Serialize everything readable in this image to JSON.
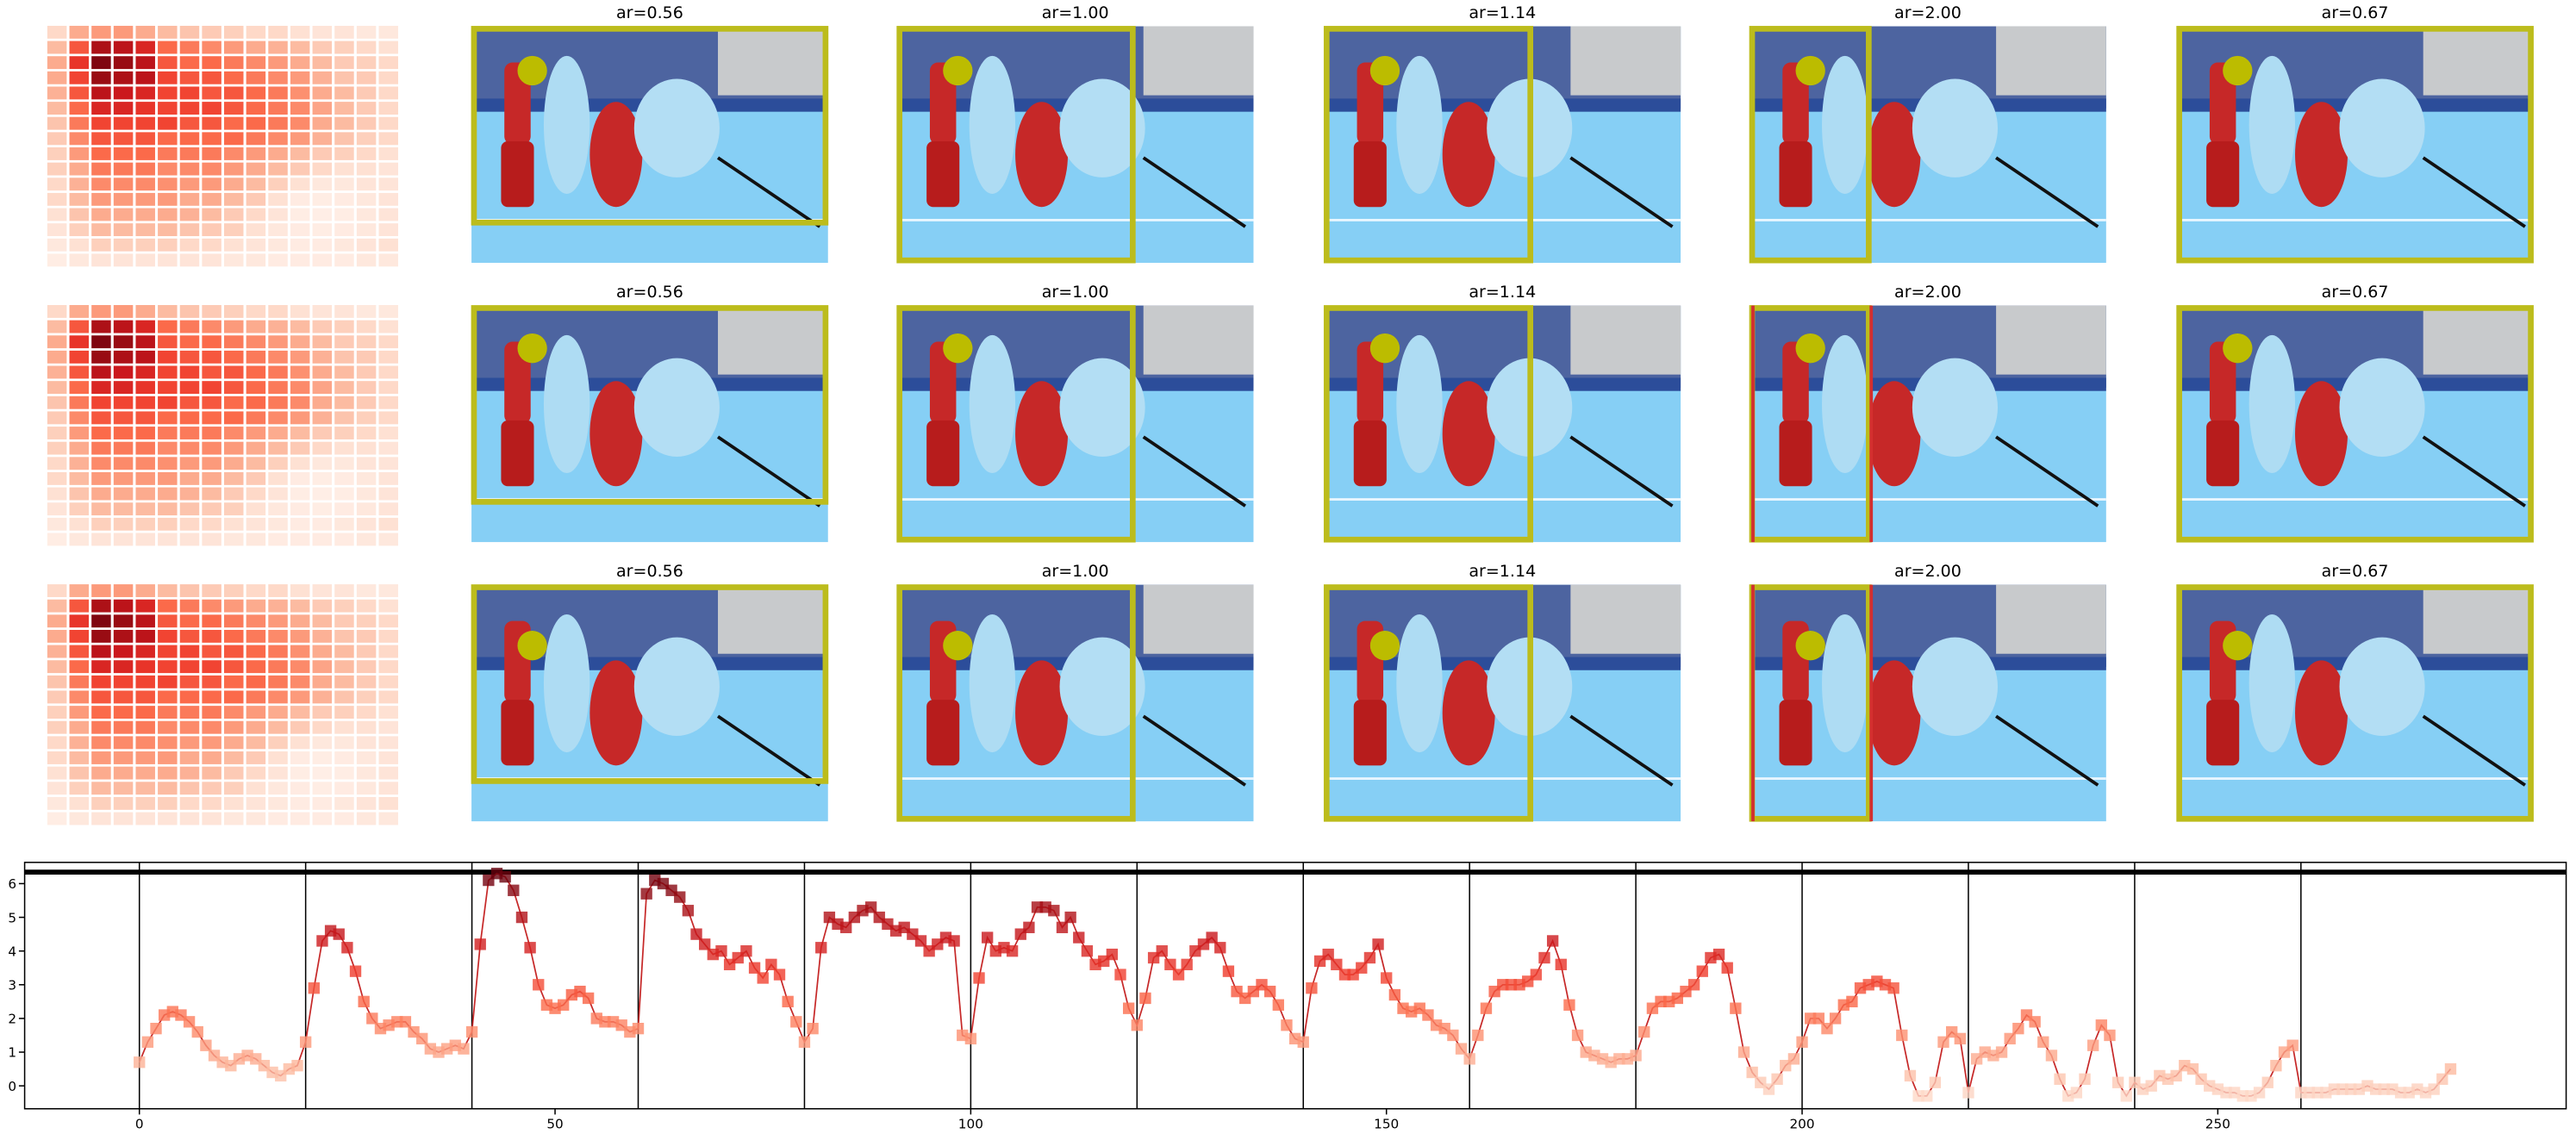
{
  "chart_data": [
    {
      "type": "heatmap",
      "cmap": "Reds",
      "values": [
        [
          0.15,
          0.3,
          0.35,
          0.35,
          0.3,
          0.25,
          0.22,
          0.2,
          0.18,
          0.15,
          0.15,
          0.12,
          0.1,
          0.1,
          0.08,
          0.08
        ],
        [
          0.25,
          0.55,
          0.85,
          0.8,
          0.7,
          0.5,
          0.45,
          0.4,
          0.35,
          0.3,
          0.28,
          0.25,
          0.2,
          0.18,
          0.15,
          0.12
        ],
        [
          0.3,
          0.65,
          0.95,
          0.9,
          0.8,
          0.55,
          0.5,
          0.5,
          0.45,
          0.4,
          0.35,
          0.3,
          0.25,
          0.2,
          0.18,
          0.15
        ],
        [
          0.3,
          0.6,
          0.9,
          0.85,
          0.8,
          0.6,
          0.55,
          0.55,
          0.5,
          0.45,
          0.4,
          0.35,
          0.28,
          0.22,
          0.2,
          0.15
        ],
        [
          0.28,
          0.55,
          0.8,
          0.75,
          0.7,
          0.6,
          0.6,
          0.55,
          0.55,
          0.5,
          0.45,
          0.38,
          0.3,
          0.25,
          0.2,
          0.15
        ],
        [
          0.25,
          0.5,
          0.7,
          0.7,
          0.65,
          0.6,
          0.6,
          0.6,
          0.55,
          0.5,
          0.45,
          0.4,
          0.32,
          0.25,
          0.2,
          0.15
        ],
        [
          0.22,
          0.45,
          0.6,
          0.6,
          0.6,
          0.6,
          0.55,
          0.55,
          0.5,
          0.5,
          0.45,
          0.4,
          0.3,
          0.25,
          0.2,
          0.15
        ],
        [
          0.2,
          0.4,
          0.55,
          0.55,
          0.55,
          0.5,
          0.5,
          0.5,
          0.5,
          0.45,
          0.4,
          0.35,
          0.28,
          0.22,
          0.18,
          0.15
        ],
        [
          0.18,
          0.35,
          0.5,
          0.5,
          0.5,
          0.45,
          0.45,
          0.45,
          0.4,
          0.35,
          0.3,
          0.25,
          0.2,
          0.18,
          0.15,
          0.12
        ],
        [
          0.18,
          0.3,
          0.45,
          0.45,
          0.45,
          0.4,
          0.4,
          0.4,
          0.35,
          0.3,
          0.25,
          0.2,
          0.15,
          0.12,
          0.12,
          0.1
        ],
        [
          0.15,
          0.28,
          0.4,
          0.4,
          0.4,
          0.38,
          0.35,
          0.35,
          0.3,
          0.25,
          0.18,
          0.12,
          0.08,
          0.08,
          0.1,
          0.1
        ],
        [
          0.15,
          0.25,
          0.35,
          0.35,
          0.35,
          0.35,
          0.3,
          0.3,
          0.25,
          0.2,
          0.12,
          0.06,
          0.05,
          0.06,
          0.08,
          0.1
        ],
        [
          0.12,
          0.22,
          0.3,
          0.3,
          0.3,
          0.3,
          0.28,
          0.25,
          0.2,
          0.15,
          0.1,
          0.05,
          0.04,
          0.05,
          0.08,
          0.1
        ],
        [
          0.1,
          0.18,
          0.25,
          0.25,
          0.25,
          0.25,
          0.22,
          0.2,
          0.18,
          0.12,
          0.08,
          0.06,
          0.05,
          0.06,
          0.08,
          0.1
        ],
        [
          0.08,
          0.12,
          0.18,
          0.18,
          0.18,
          0.18,
          0.15,
          0.15,
          0.12,
          0.1,
          0.08,
          0.06,
          0.06,
          0.08,
          0.1,
          0.12
        ],
        [
          0.05,
          0.08,
          0.1,
          0.1,
          0.1,
          0.1,
          0.1,
          0.1,
          0.08,
          0.08,
          0.06,
          0.06,
          0.06,
          0.06,
          0.08,
          0.08
        ]
      ]
    },
    {
      "type": "image-grid",
      "titles": [
        [
          "ar=0.56",
          "ar=1.00",
          "ar=1.14",
          "ar=2.00",
          "ar=0.67"
        ],
        [
          "ar=0.56",
          "ar=1.00",
          "ar=1.14",
          "ar=2.00",
          "ar=0.67"
        ],
        [
          "ar=0.56",
          "ar=1.00",
          "ar=1.14",
          "ar=2.00",
          "ar=0.67"
        ]
      ]
    },
    {
      "type": "line",
      "cmap": "Reds",
      "xlim": [
        -13.8,
        291.9
      ],
      "ylim": [
        -0.68,
        6.63
      ],
      "xticks": [
        0,
        50,
        100,
        150,
        200,
        250
      ],
      "yticks": [
        0,
        1,
        2,
        3,
        4,
        5,
        6
      ],
      "vlines": [
        0,
        20,
        40,
        60,
        80,
        100,
        120,
        140,
        160,
        180,
        200,
        220,
        240,
        260
      ],
      "hline": 6.34,
      "x": [
        0,
        1,
        2,
        3,
        4,
        5,
        6,
        7,
        8,
        9,
        10,
        11,
        12,
        13,
        14,
        15,
        16,
        17,
        18,
        19,
        20,
        21,
        22,
        23,
        24,
        25,
        26,
        27,
        28,
        29,
        30,
        31,
        32,
        33,
        34,
        35,
        36,
        37,
        38,
        39,
        40,
        41,
        42,
        43,
        44,
        45,
        46,
        47,
        48,
        49,
        50,
        51,
        52,
        53,
        54,
        55,
        56,
        57,
        58,
        59,
        60,
        61,
        62,
        63,
        64,
        65,
        66,
        67,
        68,
        69,
        70,
        71,
        72,
        73,
        74,
        75,
        76,
        77,
        78,
        79,
        80,
        81,
        82,
        83,
        84,
        85,
        86,
        87,
        88,
        89,
        90,
        91,
        92,
        93,
        94,
        95,
        96,
        97,
        98,
        99,
        100,
        101,
        102,
        103,
        104,
        105,
        106,
        107,
        108,
        109,
        110,
        111,
        112,
        113,
        114,
        115,
        116,
        117,
        118,
        119,
        120,
        121,
        122,
        123,
        124,
        125,
        126,
        127,
        128,
        129,
        130,
        131,
        132,
        133,
        134,
        135,
        136,
        137,
        138,
        139,
        140,
        141,
        142,
        143,
        144,
        145,
        146,
        147,
        148,
        149,
        150,
        151,
        152,
        153,
        154,
        155,
        156,
        157,
        158,
        159,
        160,
        161,
        162,
        163,
        164,
        165,
        166,
        167,
        168,
        169,
        170,
        171,
        172,
        173,
        174,
        175,
        176,
        177,
        178,
        179,
        180,
        181,
        182,
        183,
        184,
        185,
        186,
        187,
        188,
        189,
        190,
        191,
        192,
        193,
        194,
        195,
        196,
        197,
        198,
        199,
        200,
        201,
        202,
        203,
        204,
        205,
        206,
        207,
        208,
        209,
        210,
        211,
        212,
        213,
        214,
        215,
        216,
        217,
        218,
        219,
        220,
        221,
        222,
        223,
        224,
        225,
        226,
        227,
        228,
        229,
        230,
        231,
        232,
        233,
        234,
        235,
        236,
        237,
        238,
        239,
        240,
        241,
        242,
        243,
        244,
        245,
        246,
        247,
        248,
        249,
        250,
        251,
        252,
        253,
        254,
        255,
        256,
        257,
        258,
        259,
        260,
        261,
        262,
        263,
        264,
        265,
        266,
        267,
        268,
        269,
        270,
        271,
        272,
        273,
        274,
        275,
        276,
        277,
        278
      ],
      "series": [
        {
          "color": "#c62828",
          "values": [
            0.7,
            1.3,
            1.7,
            2.1,
            2.2,
            2.1,
            1.9,
            1.6,
            1.2,
            0.9,
            0.7,
            0.6,
            0.8,
            0.9,
            0.8,
            0.6,
            0.4,
            0.3,
            0.5,
            0.6,
            1.3,
            2.9,
            4.3,
            4.6,
            4.5,
            4.1,
            3.4,
            2.5,
            2.0,
            1.7,
            1.8,
            1.9,
            1.9,
            1.6,
            1.4,
            1.1,
            1.0,
            1.1,
            1.2,
            1.1,
            1.6,
            4.2,
            6.1,
            6.3,
            6.2,
            5.8,
            5.0,
            4.1,
            3.0,
            2.4,
            2.3,
            2.4,
            2.7,
            2.8,
            2.6,
            2.0,
            1.9,
            1.9,
            1.8,
            1.6,
            1.7,
            5.7,
            6.1,
            6.0,
            5.8,
            5.6,
            5.2,
            4.5,
            4.2,
            3.9,
            4.0,
            3.6,
            3.8,
            4.0,
            3.5,
            3.2,
            3.6,
            3.3,
            2.5,
            1.9,
            1.3,
            1.7,
            4.1,
            5.0,
            4.8,
            4.7,
            5.0,
            5.2,
            5.3,
            5.0,
            4.8,
            4.6,
            4.7,
            4.5,
            4.3,
            4.0,
            4.2,
            4.4,
            4.3,
            1.5,
            1.4,
            3.2,
            4.4,
            4.0,
            4.1,
            4.0,
            4.5,
            4.7,
            5.3,
            5.3,
            5.2,
            4.7,
            5.0,
            4.4,
            4.0,
            3.6,
            3.7,
            3.9,
            3.3,
            2.3,
            1.8,
            2.6,
            3.8,
            4.0,
            3.6,
            3.3,
            3.6,
            4.0,
            4.2,
            4.4,
            4.1,
            3.4,
            2.8,
            2.6,
            2.8,
            3.0,
            2.8,
            2.4,
            1.8,
            1.4,
            1.3,
            2.9,
            3.7,
            3.9,
            3.6,
            3.3,
            3.3,
            3.5,
            3.8,
            4.2,
            3.2,
            2.7,
            2.3,
            2.2,
            2.3,
            2.1,
            1.8,
            1.7,
            1.5,
            1.1,
            0.8,
            1.5,
            2.3,
            2.8,
            3.0,
            3.0,
            3.0,
            3.1,
            3.3,
            3.8,
            4.3,
            3.6,
            2.4,
            1.5,
            1.0,
            0.9,
            0.8,
            0.7,
            0.8,
            0.8,
            0.9,
            1.6,
            2.3,
            2.5,
            2.5,
            2.6,
            2.8,
            3.0,
            3.4,
            3.8,
            3.9,
            3.5,
            2.3,
            1.0,
            0.4,
            0.1,
            -0.1,
            0.2,
            0.6,
            0.8,
            1.3,
            2.0,
            2.0,
            1.7,
            2.0,
            2.4,
            2.5,
            2.9,
            3.0,
            3.1,
            3.0,
            2.9,
            1.5,
            0.3,
            -0.3,
            -0.3,
            0.1,
            1.3,
            1.6,
            1.4,
            -0.2,
            0.8,
            1.0,
            0.9,
            1.0,
            1.4,
            1.7,
            2.1,
            1.9,
            1.3,
            0.9,
            0.2,
            -0.3,
            -0.2,
            0.2,
            1.2,
            1.8,
            1.5,
            0.1,
            -0.3,
            0.1,
            -0.1,
            0.0,
            0.3,
            0.2,
            0.3,
            0.6,
            0.5,
            0.2,
            0.0,
            -0.1,
            -0.2,
            -0.2,
            -0.3,
            -0.3,
            -0.2,
            0.1,
            0.6,
            1.0,
            1.2,
            -0.2,
            -0.2,
            -0.2,
            -0.2,
            -0.1,
            -0.1,
            -0.1,
            -0.1,
            0.0,
            -0.1,
            -0.1,
            -0.1,
            -0.2,
            -0.2,
            -0.1,
            -0.2,
            -0.1,
            0.2,
            0.5
          ]
        }
      ]
    }
  ]
}
